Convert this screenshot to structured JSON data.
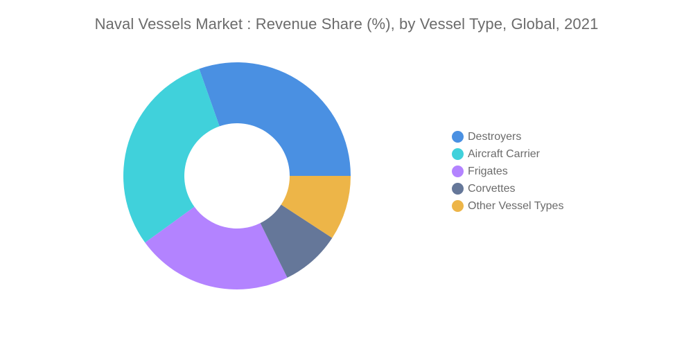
{
  "chart_data": {
    "type": "pie",
    "variant": "donut",
    "title": "Naval Vessels Market : Revenue Share (%), by Vessel Type, Global, 2021",
    "categories": [
      "Destroyers",
      "Aircraft Carrier",
      "Frigates",
      "Corvettes",
      "Other Vessel Types"
    ],
    "values": [
      30.4,
      29.6,
      22.3,
      8.5,
      9.2
    ],
    "colors": [
      "#4a90e2",
      "#40d1db",
      "#b383ff",
      "#657799",
      "#edb548"
    ],
    "legend_position": "right"
  }
}
